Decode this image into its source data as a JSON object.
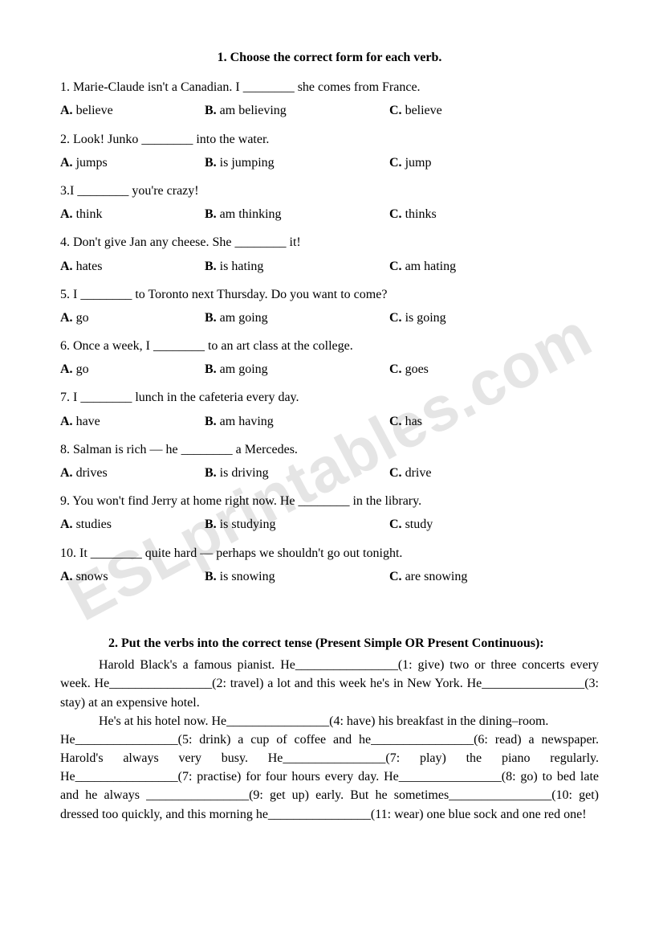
{
  "watermark": "ESLprintables.com",
  "section1": {
    "title": "1. Choose the correct form for each verb.",
    "questions": [
      {
        "q": "1. Marie-Claude isn't a Canadian. I ________ she comes from France.",
        "a": "believe",
        "b": "am believing",
        "c": "believe"
      },
      {
        "q": "2. Look! Junko ________  into  the water.",
        "a": "jumps",
        "b": "is jumping",
        "c": "jump"
      },
      {
        "q": "3.I ________ you're  crazy!",
        "a": "think",
        "b": "am thinking",
        "c": "thinks"
      },
      {
        "q": "4. Don't  give Jan any  cheese. She  ________  it!",
        "a": "hates",
        "b": "is hating",
        "c": "am hating"
      },
      {
        "q": "5. I  ________  to Toronto next Thursday. Do you want  to come?",
        "a": "go",
        "b": "am going",
        "c": "is going"
      },
      {
        "q": "6. Once  a  week,  I  ________  to  an  art class at  the  college.",
        "a": "go",
        "b": "am  going",
        "c": "goes"
      },
      {
        "q": "7. I ________  lunch in  the cafeteria every day.",
        "a": "have",
        "b": "am   having",
        "c": "has"
      },
      {
        "q": "8. Salman is rich — he ________  a Mercedes.",
        "a": "drives",
        "b": "is driving",
        "c": "drive"
      },
      {
        "q": "9. You won't find Jerry at home right now. He ________ in the library.",
        "a": "studies",
        "b": "is  studying",
        "c": "study"
      },
      {
        "q": "10. It ________  quite hard — perhaps we shouldn't go out tonight.",
        "a": "snows",
        "b": "is  snowing",
        "c": "are snowing"
      }
    ]
  },
  "section2": {
    "title": "2. Put the verbs into the correct tense (Present Simple OR Present Continuous):",
    "p1": "Harold Black's a famous pianist. He________________(1: give) two or three concerts every week. He________________(2: travel) a lot and this week he's in New York. He________________(3: stay) at an expensive hotel.",
    "p2": "He's at his hotel now. He________________(4: have) his breakfast in the dining–room.",
    "p3": "He________________(5: drink) a cup of coffee and he________________(6: read) a newspaper. Harold's always very busy. He________________(7: play) the piano regularly. He________________(7: practise) for four hours every day. He________________(8: go) to bed late and he always ________________(9: get up) early. But he sometimes________________(10: get) dressed too quickly, and this morning he________________(11: wear) one blue sock and one red one!"
  }
}
